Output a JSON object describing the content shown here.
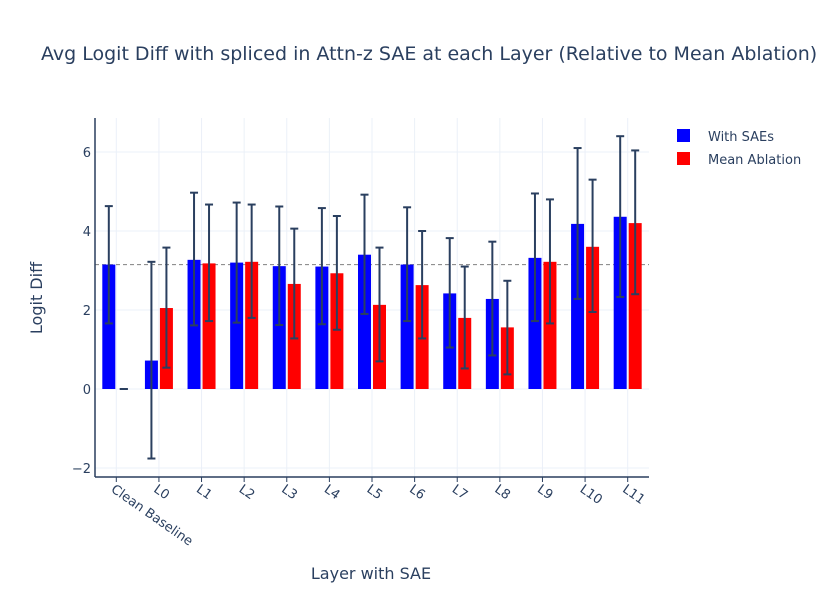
{
  "chart_data": {
    "type": "bar",
    "title": "Avg Logit Diff with spliced in Attn-z SAE at each Layer (Relative to Mean Ablation)",
    "xlabel": "Layer with SAE",
    "ylabel": "Logit Diff",
    "categories": [
      "Clean Baseline",
      "L0",
      "L1",
      "L2",
      "L3",
      "L4",
      "L5",
      "L6",
      "L7",
      "L8",
      "L9",
      "L10",
      "L11"
    ],
    "ylim": [
      -2.2,
      6.85
    ],
    "yticks": [
      -2,
      0,
      2,
      4,
      6
    ],
    "ytick_labels": [
      "−2",
      "0",
      "2",
      "4",
      "6"
    ],
    "reference_line": {
      "y": 3.15,
      "style": "dashed"
    },
    "series": [
      {
        "name": "With SAEs",
        "color": "#0000ff",
        "values": [
          3.15,
          0.72,
          3.27,
          3.2,
          3.11,
          3.1,
          3.4,
          3.15,
          2.42,
          2.28,
          3.32,
          4.18,
          4.36
        ],
        "error_low": [
          1.66,
          -1.76,
          1.61,
          1.68,
          1.62,
          1.64,
          1.9,
          1.72,
          1.05,
          0.85,
          1.72,
          2.28,
          2.33
        ],
        "error_high": [
          4.63,
          3.22,
          4.97,
          4.72,
          4.62,
          4.58,
          4.92,
          4.6,
          3.82,
          3.73,
          4.95,
          6.1,
          6.4
        ]
      },
      {
        "name": "Mean Ablation",
        "color": "#ff0000",
        "values": [
          0.0,
          2.05,
          3.18,
          3.22,
          2.66,
          2.93,
          2.13,
          2.63,
          1.8,
          1.56,
          3.22,
          3.6,
          4.2
        ],
        "error_low": [
          0.0,
          0.54,
          1.72,
          1.8,
          1.28,
          1.5,
          0.7,
          1.28,
          0.52,
          0.37,
          1.66,
          1.95,
          2.4
        ],
        "error_high": [
          0.0,
          3.58,
          4.67,
          4.67,
          4.06,
          4.38,
          3.58,
          4.0,
          3.1,
          2.74,
          4.8,
          5.3,
          6.04
        ]
      }
    ],
    "legend": {
      "placement": "top-right"
    },
    "grid": true,
    "error_bar_color": "#2a3f5f"
  }
}
